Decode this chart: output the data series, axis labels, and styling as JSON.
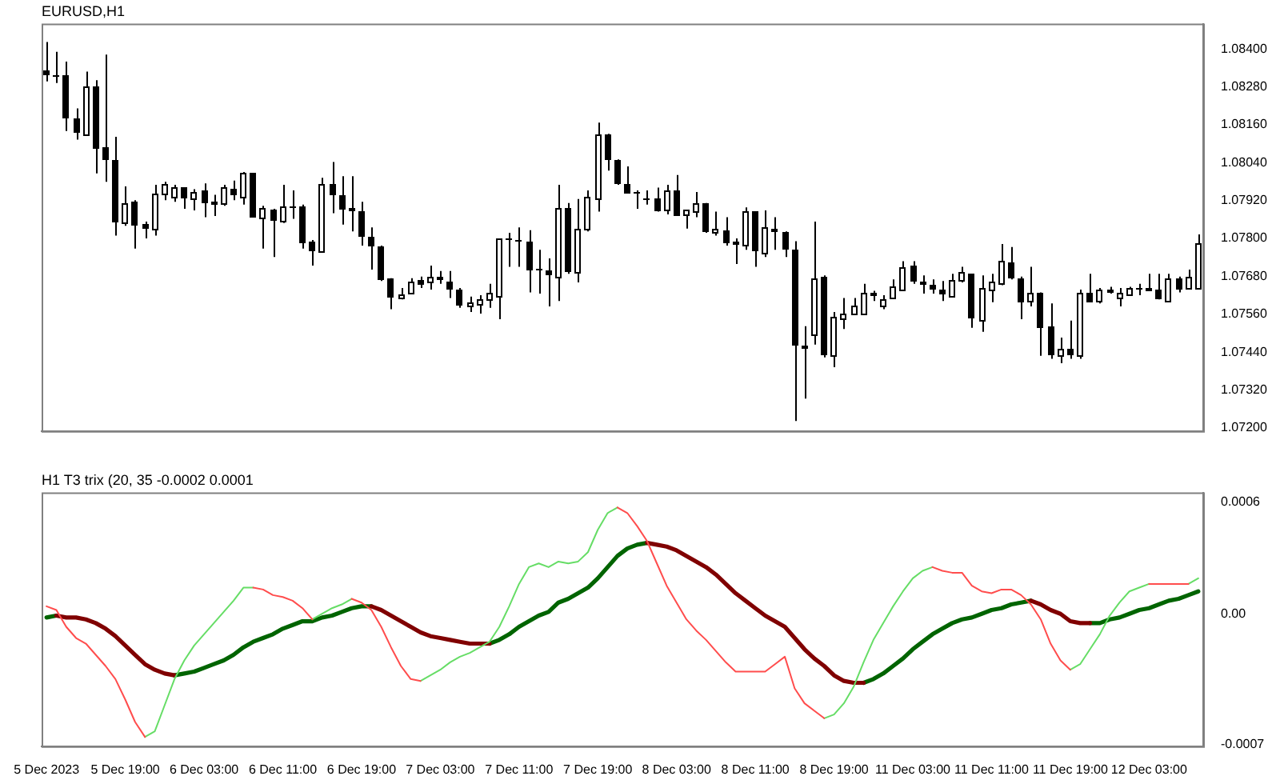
{
  "chart_data": [
    {
      "type": "candlestick",
      "title": "EURUSD,H1",
      "grid": false,
      "legend": false,
      "categories": [
        null,
        null,
        null,
        null,
        null,
        null,
        null,
        null,
        null,
        null,
        null,
        null,
        null,
        null,
        null,
        null,
        null,
        null,
        null,
        null,
        null,
        null,
        null,
        null,
        null,
        null,
        null,
        null,
        null,
        null,
        null,
        null,
        null,
        null,
        null,
        null,
        null,
        null,
        null,
        null,
        null,
        null,
        null,
        null,
        null,
        null,
        null,
        null,
        null,
        null,
        null,
        null,
        null,
        null,
        null,
        null,
        null,
        null,
        null,
        null,
        null,
        null,
        null,
        null,
        null,
        null,
        null,
        null,
        null,
        null,
        null,
        null,
        null,
        null,
        null,
        null,
        null,
        null,
        null,
        null,
        null,
        null,
        null,
        null,
        null,
        null,
        null,
        null,
        null,
        null,
        null,
        null,
        null,
        null,
        null,
        null,
        null,
        null,
        null,
        null,
        null,
        null,
        null,
        null,
        null,
        null,
        null,
        null,
        null,
        null,
        null,
        null,
        null,
        null,
        null,
        null,
        null,
        null
      ],
      "ohlc": [
        [
          1.08333,
          1.08422,
          1.08297,
          1.08315
        ],
        [
          1.08319,
          1.08391,
          1.08292,
          1.08315
        ],
        [
          1.08319,
          1.0836,
          1.0814,
          1.0818
        ],
        [
          1.0818,
          1.08212,
          1.08113,
          1.08136
        ],
        [
          1.08131,
          1.08328,
          1.08131,
          1.08279
        ],
        [
          1.08279,
          1.08301,
          1.08006,
          1.08082
        ],
        [
          1.08091,
          1.08382,
          1.07979,
          1.08046
        ],
        [
          1.08046,
          1.08122,
          1.07809,
          1.07853
        ],
        [
          1.07853,
          1.07965,
          1.0784,
          1.07912
        ],
        [
          1.07916,
          1.07921,
          1.07768,
          1.0784
        ],
        [
          1.07844,
          1.07853,
          1.078,
          1.07831
        ],
        [
          1.07831,
          1.0797,
          1.07809,
          1.07943
        ],
        [
          1.07943,
          1.07979,
          1.07921,
          1.0797
        ],
        [
          1.07934,
          1.0797,
          1.07916,
          1.07961
        ],
        [
          1.07961,
          1.07961,
          1.07894,
          1.07925
        ],
        [
          1.07925,
          1.07956,
          1.07889,
          1.07947
        ],
        [
          1.07952,
          1.07974,
          1.07867,
          1.07912
        ],
        [
          1.07916,
          1.07938,
          1.07871,
          1.07916
        ],
        [
          1.07912,
          1.0797,
          1.07903,
          1.07961
        ],
        [
          1.07956,
          1.07983,
          1.07921,
          1.07938
        ],
        [
          1.07934,
          1.0801,
          1.07907,
          1.08006
        ],
        [
          1.08006,
          1.08006,
          1.07867,
          1.07867
        ],
        [
          1.07867,
          1.07903,
          1.07768,
          1.07894
        ],
        [
          1.07889,
          1.07894,
          1.07741,
          1.07858
        ],
        [
          1.07858,
          1.0797,
          1.07849,
          1.07903
        ],
        [
          1.07903,
          1.07952,
          1.07862,
          1.07898
        ],
        [
          1.07903,
          1.07907,
          1.07768,
          1.07786
        ],
        [
          1.07791,
          1.07795,
          1.07714,
          1.07759
        ],
        [
          1.07759,
          1.07992,
          1.07755,
          1.0797
        ],
        [
          1.0797,
          1.08042,
          1.0788,
          1.07938
        ],
        [
          1.07938,
          1.07997,
          1.07844,
          1.07889
        ],
        [
          1.07894,
          1.07997,
          1.07822,
          1.07885
        ],
        [
          1.07885,
          1.07916,
          1.07777,
          1.07804
        ],
        [
          1.07804,
          1.07835,
          1.07701,
          1.07773
        ],
        [
          1.07773,
          1.07777,
          1.07665,
          1.0767
        ],
        [
          1.07674,
          1.07674,
          1.07576,
          1.07611
        ],
        [
          1.07611,
          1.07643,
          1.07607,
          1.07625
        ],
        [
          1.07629,
          1.07674,
          1.07629,
          1.07661
        ],
        [
          1.0767,
          1.07679,
          1.07643,
          1.07652
        ],
        [
          1.07661,
          1.07714,
          1.07638,
          1.07679
        ],
        [
          1.07679,
          1.07697,
          1.07656,
          1.0767
        ],
        [
          1.07661,
          1.07697,
          1.07611,
          1.07638
        ],
        [
          1.07638,
          1.07643,
          1.0758,
          1.07585
        ],
        [
          1.07585,
          1.07616,
          1.07567,
          1.07598
        ],
        [
          1.07594,
          1.0762,
          1.07562,
          1.07607
        ],
        [
          1.07607,
          1.07656,
          1.0758,
          1.07629
        ],
        [
          1.0762,
          1.078,
          1.07544,
          1.078
        ],
        [
          1.078,
          1.07818,
          1.0771,
          1.07795
        ],
        [
          1.07795,
          1.07835,
          1.0771,
          1.07791
        ],
        [
          1.07791,
          1.07826,
          1.07629,
          1.07701
        ],
        [
          1.07706,
          1.07764,
          1.07625,
          1.07697
        ],
        [
          1.07697,
          1.07737,
          1.07585,
          1.07683
        ],
        [
          1.07679,
          1.0797,
          1.07602,
          1.07898
        ],
        [
          1.07898,
          1.07912,
          1.07688,
          1.07692
        ],
        [
          1.07692,
          1.07925,
          1.07661,
          1.07831
        ],
        [
          1.07831,
          1.07952,
          1.07822,
          1.0793
        ],
        [
          1.07925,
          1.08167,
          1.07885,
          1.08131
        ],
        [
          1.08127,
          1.08131,
          1.08015,
          1.08046
        ],
        [
          1.0805,
          1.0805,
          1.0797,
          1.07974
        ],
        [
          1.07974,
          1.08028,
          1.07943,
          1.07943
        ],
        [
          1.07947,
          1.07952,
          1.07894,
          1.07943
        ],
        [
          1.07925,
          1.07952,
          1.07907,
          1.07921
        ],
        [
          1.07925,
          1.07961,
          1.07885,
          1.07885
        ],
        [
          1.07889,
          1.0797,
          1.07876,
          1.07952
        ],
        [
          1.07952,
          1.08001,
          1.07871,
          1.07871
        ],
        [
          1.07876,
          1.07889,
          1.07831,
          1.07889
        ],
        [
          1.07885,
          1.07947,
          1.07867,
          1.07912
        ],
        [
          1.07912,
          1.07912,
          1.07818,
          1.07818
        ],
        [
          1.07818,
          1.07885,
          1.07809,
          1.07831
        ],
        [
          1.07826,
          1.07867,
          1.07777,
          1.07786
        ],
        [
          1.07791,
          1.078,
          1.07719,
          1.07782
        ],
        [
          1.07782,
          1.07898,
          1.07764,
          1.07885
        ],
        [
          1.07885,
          1.07885,
          1.0771,
          1.07759
        ],
        [
          1.07755,
          1.07889,
          1.07741,
          1.07835
        ],
        [
          1.07831,
          1.07867,
          1.07764,
          1.07822
        ],
        [
          1.07818,
          1.07822,
          1.07741,
          1.07764
        ],
        [
          1.07764,
          1.07791,
          1.07222,
          1.07459
        ],
        [
          1.07459,
          1.07522,
          1.07293,
          1.0745
        ],
        [
          1.07495,
          1.07853,
          1.07464,
          1.07674
        ],
        [
          1.07679,
          1.07683,
          1.07423,
          1.07432
        ],
        [
          1.07432,
          1.07567,
          1.07392,
          1.07553
        ],
        [
          1.07549,
          1.07611,
          1.07513,
          1.07562
        ],
        [
          1.07562,
          1.07611,
          1.07558,
          1.07585
        ],
        [
          1.07562,
          1.07656,
          1.07558,
          1.07629
        ],
        [
          1.07629,
          1.07634,
          1.07602,
          1.07616
        ],
        [
          1.07589,
          1.0762,
          1.07576,
          1.07607
        ],
        [
          1.07611,
          1.0767,
          1.07611,
          1.07647
        ],
        [
          1.07638,
          1.07728,
          1.07634,
          1.0771
        ],
        [
          1.07714,
          1.07728,
          1.07656,
          1.07665
        ],
        [
          1.07665,
          1.07683,
          1.07625,
          1.07652
        ],
        [
          1.07652,
          1.0767,
          1.07625,
          1.07638
        ],
        [
          1.07638,
          1.07665,
          1.07602,
          1.07625
        ],
        [
          1.07616,
          1.07688,
          1.07616,
          1.0767
        ],
        [
          1.0767,
          1.0771,
          1.07661,
          1.07692
        ],
        [
          1.07688,
          1.07688,
          1.07517,
          1.07549
        ],
        [
          1.07544,
          1.07683,
          1.07504,
          1.07643
        ],
        [
          1.07638,
          1.07688,
          1.07598,
          1.07661
        ],
        [
          1.07656,
          1.07782,
          1.07652,
          1.07728
        ],
        [
          1.07723,
          1.07773,
          1.0767,
          1.07674
        ],
        [
          1.07674,
          1.07679,
          1.07544,
          1.07598
        ],
        [
          1.07602,
          1.0771,
          1.07585,
          1.07629
        ],
        [
          1.07629,
          1.07629,
          1.07428,
          1.07517
        ],
        [
          1.07522,
          1.07594,
          1.07419,
          1.07428
        ],
        [
          1.07432,
          1.07486,
          1.07405,
          1.0745
        ],
        [
          1.0745,
          1.0754,
          1.07419,
          1.07428
        ],
        [
          1.07432,
          1.07638,
          1.07419,
          1.07629
        ],
        [
          1.07629,
          1.07688,
          1.07598,
          1.07598
        ],
        [
          1.07602,
          1.07643,
          1.07594,
          1.07638
        ],
        [
          1.07638,
          1.07647,
          1.07625,
          1.07629
        ],
        [
          1.07611,
          1.07643,
          1.07585,
          1.07629
        ],
        [
          1.07625,
          1.07647,
          1.07625,
          1.07643
        ],
        [
          1.07643,
          1.07656,
          1.0762,
          1.07638
        ],
        [
          1.07643,
          1.07688,
          1.07634,
          1.07634
        ],
        [
          1.07638,
          1.07688,
          1.07607,
          1.07607
        ],
        [
          1.07602,
          1.07688,
          1.07602,
          1.07674
        ],
        [
          1.07674,
          1.07679,
          1.07629,
          1.07638
        ],
        [
          1.07643,
          1.07701,
          1.07643,
          1.07679
        ],
        [
          1.07643,
          1.07813,
          1.07643,
          1.07786
        ]
      ],
      "ylim": [
        1.0719,
        1.0848
      ],
      "yticks": [
        {
          "value": 1.084,
          "label": "1.08400"
        },
        {
          "value": 1.0828,
          "label": "1.08280"
        },
        {
          "value": 1.0816,
          "label": "1.08160"
        },
        {
          "value": 1.0804,
          "label": "1.08040"
        },
        {
          "value": 1.0792,
          "label": "1.07920"
        },
        {
          "value": 1.078,
          "label": "1.07800"
        },
        {
          "value": 1.0768,
          "label": "1.07680"
        },
        {
          "value": 1.0756,
          "label": "1.07560"
        },
        {
          "value": 1.0744,
          "label": "1.07440"
        },
        {
          "value": 1.0732,
          "label": "1.07320"
        },
        {
          "value": 1.072,
          "label": "1.07200"
        }
      ]
    },
    {
      "type": "line",
      "title": "H1 T3 trix (20, 35 -0.0002 0.0001",
      "grid": false,
      "legend": false,
      "categories": [
        "5 Dec 2023",
        null,
        null,
        null,
        null,
        null,
        null,
        null,
        "5 Dec 19:00",
        null,
        null,
        null,
        null,
        null,
        null,
        null,
        "6 Dec 03:00",
        null,
        null,
        null,
        null,
        null,
        null,
        null,
        "6 Dec 11:00",
        null,
        null,
        null,
        null,
        null,
        null,
        null,
        "6 Dec 19:00",
        null,
        null,
        null,
        null,
        null,
        null,
        null,
        "7 Dec 03:00",
        null,
        null,
        null,
        null,
        null,
        null,
        null,
        "7 Dec 11:00",
        null,
        null,
        null,
        null,
        null,
        null,
        null,
        "7 Dec 19:00",
        null,
        null,
        null,
        null,
        null,
        null,
        null,
        "8 Dec 03:00",
        null,
        null,
        null,
        null,
        null,
        null,
        null,
        "8 Dec 11:00",
        null,
        null,
        null,
        null,
        null,
        null,
        null,
        "8 Dec 19:00",
        null,
        null,
        null,
        null,
        null,
        null,
        null,
        "11 Dec 03:00",
        null,
        null,
        null,
        null,
        null,
        null,
        null,
        "11 Dec 11:00",
        null,
        null,
        null,
        null,
        null,
        null,
        null,
        "11 Dec 19:00",
        null,
        null,
        null,
        null,
        null,
        null,
        null,
        "12 Dec 03:00",
        null,
        null,
        null,
        null,
        null
      ],
      "series": [
        {
          "color": "#ff4d4d",
          "values": [
            4e-05,
            2e-05,
            -7e-05,
            -0.00013,
            -0.00016,
            -0.00022,
            -0.00028,
            -0.00035,
            -0.00046,
            -0.00058,
            -0.00066,
            null,
            null,
            null,
            null,
            null,
            null,
            null,
            null,
            null,
            null,
            0.00014,
            0.00013,
            0.0001,
            9e-05,
            7e-05,
            3e-05,
            -3e-05,
            null,
            null,
            null,
            8e-05,
            6e-05,
            2e-05,
            -7e-05,
            -0.00018,
            -0.00028,
            -0.00035,
            -0.00036,
            null,
            null,
            null,
            null,
            null,
            null,
            null,
            null,
            null,
            null,
            null,
            null,
            null,
            null,
            null,
            null,
            null,
            null,
            null,
            0.00057,
            0.00054,
            0.00047,
            0.00039,
            0.00027,
            0.00015,
            6e-05,
            -3e-05,
            -9e-05,
            -0.00014,
            -0.0002,
            -0.00026,
            -0.00031,
            -0.00031,
            -0.00031,
            -0.00031,
            -0.00027,
            -0.00023,
            -0.0004,
            -0.00048,
            -0.00052,
            -0.00056,
            null,
            null,
            null,
            null,
            null,
            null,
            null,
            null,
            null,
            null,
            0.00025,
            0.00023,
            0.00022,
            0.00022,
            0.00015,
            0.00012,
            0.00011,
            0.00013,
            0.00013,
            0.0001,
            5e-05,
            -3e-05,
            -0.00016,
            -0.00025,
            -0.0003,
            null,
            null,
            null,
            null,
            null,
            null,
            null,
            0.00016,
            0.00016,
            0.00016,
            0.00016,
            0.00016,
            null
          ]
        },
        {
          "color": "#66dd66",
          "values": [
            null,
            null,
            null,
            null,
            null,
            null,
            null,
            null,
            null,
            null,
            -0.00066,
            -0.00063,
            -0.00049,
            -0.00035,
            -0.00025,
            -0.00017,
            -0.00011,
            -5e-05,
            1e-05,
            7e-05,
            0.00014,
            0.00014,
            null,
            null,
            null,
            null,
            null,
            -3e-05,
            0,
            3e-05,
            5e-05,
            8e-05,
            null,
            null,
            null,
            null,
            null,
            null,
            -0.00036,
            -0.00033,
            -0.0003,
            -0.00026,
            -0.00023,
            -0.00021,
            -0.00018,
            -0.00015,
            -7e-05,
            4e-05,
            0.00016,
            0.00025,
            0.00027,
            0.00025,
            0.00028,
            0.00027,
            0.00028,
            0.00033,
            0.00045,
            0.00054,
            0.00057,
            null,
            null,
            null,
            null,
            null,
            null,
            null,
            null,
            null,
            null,
            null,
            null,
            null,
            null,
            null,
            null,
            null,
            null,
            null,
            null,
            -0.00056,
            -0.00054,
            -0.00048,
            -0.00039,
            -0.00026,
            -0.00014,
            -5e-05,
            4e-05,
            0.00012,
            0.00019,
            0.00023,
            0.00025,
            null,
            null,
            null,
            null,
            null,
            null,
            null,
            null,
            null,
            null,
            null,
            null,
            null,
            -0.0003,
            -0.00027,
            -0.00019,
            -0.00011,
            -1e-05,
            6e-05,
            0.00012,
            0.00014,
            0.00016,
            null,
            null,
            null,
            0.00016,
            0.00019
          ]
        },
        {
          "color": "#800000",
          "values": [
            null,
            -1e-05,
            -2e-05,
            -2e-05,
            -3e-05,
            -5e-05,
            -8e-05,
            -0.00012,
            -0.00017,
            -0.00022,
            -0.00027,
            -0.0003,
            -0.00032,
            -0.00033,
            null,
            null,
            null,
            null,
            null,
            null,
            null,
            null,
            null,
            null,
            null,
            null,
            null,
            null,
            null,
            null,
            null,
            null,
            null,
            4e-05,
            2e-05,
            -1e-05,
            -4e-05,
            -7e-05,
            -0.0001,
            -0.00012,
            -0.00013,
            -0.00014,
            -0.00015,
            -0.00016,
            -0.00016,
            -0.00016,
            null,
            null,
            null,
            null,
            null,
            null,
            null,
            null,
            null,
            null,
            null,
            null,
            null,
            null,
            null,
            0.00038,
            0.00037,
            0.00036,
            0.00034,
            0.00031,
            0.00028,
            0.00025,
            0.00021,
            0.00016,
            0.00011,
            7e-05,
            3e-05,
            -1e-05,
            -4e-05,
            -7e-05,
            -0.00013,
            -0.00019,
            -0.00024,
            -0.00028,
            -0.00033,
            -0.00036,
            -0.00037,
            -0.00037,
            null,
            null,
            null,
            null,
            null,
            null,
            null,
            null,
            null,
            null,
            null,
            null,
            null,
            null,
            null,
            null,
            7e-05,
            5e-05,
            2e-05,
            0,
            -4e-05,
            -5e-05,
            -5e-05,
            null,
            null,
            null,
            null,
            null,
            null,
            null,
            null,
            null,
            null,
            null
          ]
        },
        {
          "color": "#006400",
          "values": [
            -2e-05,
            -1e-05,
            null,
            null,
            null,
            null,
            null,
            null,
            null,
            null,
            null,
            null,
            null,
            -0.00033,
            -0.00032,
            -0.00031,
            -0.00029,
            -0.00027,
            -0.00025,
            -0.00022,
            -0.00018,
            -0.00015,
            -0.00013,
            -0.00011,
            -8e-05,
            -6e-05,
            -4e-05,
            -4e-05,
            -2e-05,
            -1e-05,
            1e-05,
            3e-05,
            4e-05,
            4e-05,
            null,
            null,
            null,
            null,
            null,
            null,
            null,
            null,
            null,
            null,
            null,
            -0.00016,
            -0.00014,
            -0.00011,
            -7e-05,
            -4e-05,
            -1e-05,
            1e-05,
            6e-05,
            8e-05,
            0.00011,
            0.00014,
            0.00019,
            0.00025,
            0.00031,
            0.00035,
            0.00037,
            0.00038,
            null,
            null,
            null,
            null,
            null,
            null,
            null,
            null,
            null,
            null,
            null,
            null,
            null,
            null,
            null,
            null,
            null,
            null,
            null,
            null,
            null,
            -0.00037,
            -0.00035,
            -0.00032,
            -0.00028,
            -0.00024,
            -0.00019,
            -0.00015,
            -0.00011,
            -8e-05,
            -5e-05,
            -3e-05,
            -2e-05,
            0,
            2e-05,
            3e-05,
            5e-05,
            6e-05,
            7e-05,
            null,
            null,
            null,
            null,
            null,
            -5e-05,
            -5e-05,
            -3e-05,
            -2e-05,
            0,
            2e-05,
            3e-05,
            5e-05,
            7e-05,
            8e-05,
            0.0001,
            0.00012
          ]
        }
      ],
      "ylim": [
        -0.00071,
        0.00065
      ],
      "yticks": [
        0.0006,
        {
          "value": 0,
          "label": "0.00"
        },
        -0.0007
      ]
    }
  ]
}
